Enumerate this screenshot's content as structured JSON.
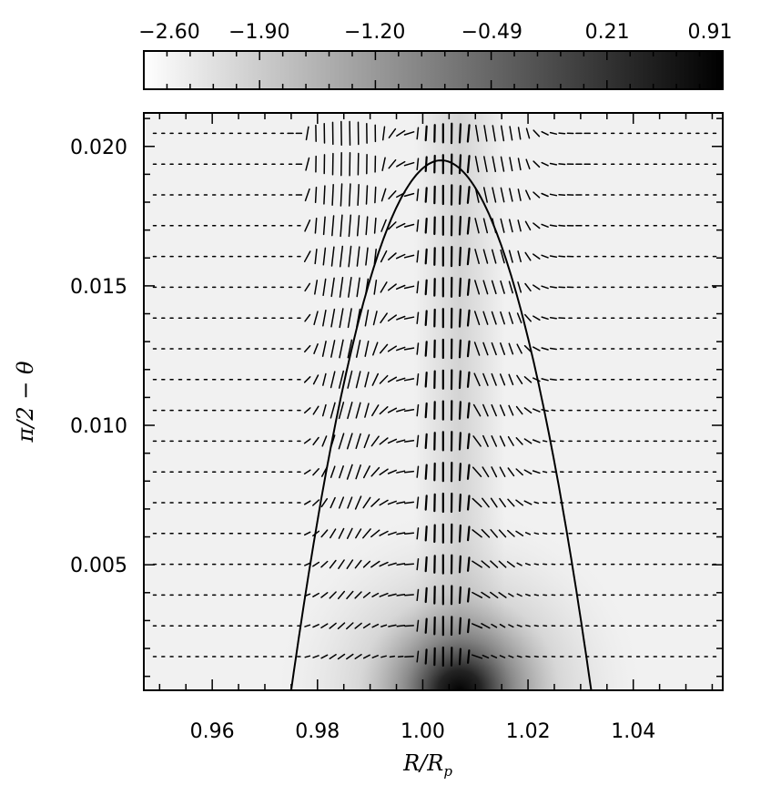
{
  "chart_data": {
    "type": "heatmap",
    "title": "",
    "xlabel": "R/R",
    "xlabel_sub": "p",
    "ylabel": "π/2 − θ",
    "xlim": [
      0.947,
      1.057
    ],
    "ylim": [
      0.0005,
      0.0212
    ],
    "x_ticks": [
      0.96,
      0.98,
      1.0,
      1.02,
      1.04
    ],
    "x_tick_labels": [
      "0.96",
      "0.98",
      "1.00",
      "1.02",
      "1.04"
    ],
    "y_ticks": [
      0.005,
      0.01,
      0.015,
      0.02
    ],
    "y_tick_labels": [
      "0.005",
      "0.010",
      "0.015",
      "0.020"
    ],
    "colorbar": {
      "range": [
        -2.6,
        0.91
      ],
      "tick_values": [
        -2.6,
        -1.9,
        -1.2,
        -0.49,
        0.21,
        0.91
      ],
      "tick_labels": [
        "−2.60",
        "−1.90",
        "−1.20",
        "−0.49",
        "0.21",
        "0.91"
      ],
      "colormap": "white-to-black",
      "location": "top"
    },
    "heatmap_peak": {
      "x": 1.005,
      "y": 0.0008,
      "value": 0.91
    },
    "contour": {
      "shape": "parabolic arc",
      "x_left_base": 0.975,
      "x_right_base": 1.032,
      "apex": {
        "x": 1.005,
        "y": 0.0195
      }
    },
    "vector_field": {
      "rows": 18,
      "columns": 67,
      "row_spacing": 0.00115,
      "description_color": "#000000"
    },
    "colors": {
      "background": "#ffffff",
      "ink": "#000000",
      "field_light": "#f1f1f1"
    }
  }
}
